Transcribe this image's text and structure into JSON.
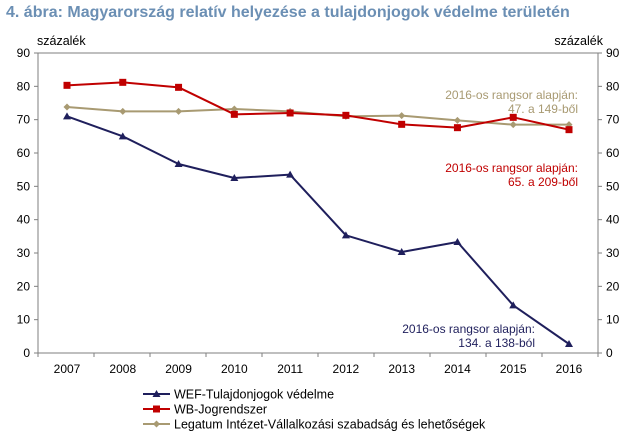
{
  "chart_data": {
    "type": "line",
    "title": "4. ábra: Magyarország relatív helyezése a tulajdonjogok védelme területén",
    "ylabel_left": "százalék",
    "ylabel_right": "százalék",
    "ylim": [
      0,
      90
    ],
    "yticks": [
      "0",
      "10",
      "20",
      "30",
      "40",
      "50",
      "60",
      "70",
      "80",
      "90"
    ],
    "categories": [
      "2007",
      "2008",
      "2009",
      "2010",
      "2011",
      "2012",
      "2013",
      "2014",
      "2015",
      "2016"
    ],
    "series": [
      {
        "name": "WEF-Tulajdonjogok védelme",
        "color": "#1f1f5c",
        "marker": "triangle",
        "values": [
          71,
          65,
          56.7,
          52.5,
          53.5,
          35.3,
          30.3,
          33.3,
          14.3,
          2.7
        ]
      },
      {
        "name": "WB-Jogrendszer",
        "color": "#c00000",
        "marker": "square",
        "values": [
          80.3,
          81.2,
          79.7,
          71.6,
          72,
          71.3,
          68.6,
          67.6,
          70.7,
          67
        ]
      },
      {
        "name": "Legatum Intézet-Vállalkozási szabadság és lehetőségek",
        "color": "#a89a72",
        "marker": "diamond",
        "values": [
          73.8,
          72.5,
          72.5,
          73.2,
          72.5,
          71,
          71.2,
          69.8,
          68.5,
          68.5
        ]
      }
    ],
    "annotations": [
      {
        "line1": "2016-os rangsor alapján:",
        "line2": "47. a 149-ből",
        "color": "#a89a72"
      },
      {
        "line1": "2016-os rangsor alapján:",
        "line2": "65. a 209-ből",
        "color": "#c00000"
      },
      {
        "line1": "2016-os rangsor alapján:",
        "line2": "134. a 138-ból",
        "color": "#1f1f5c"
      }
    ]
  }
}
